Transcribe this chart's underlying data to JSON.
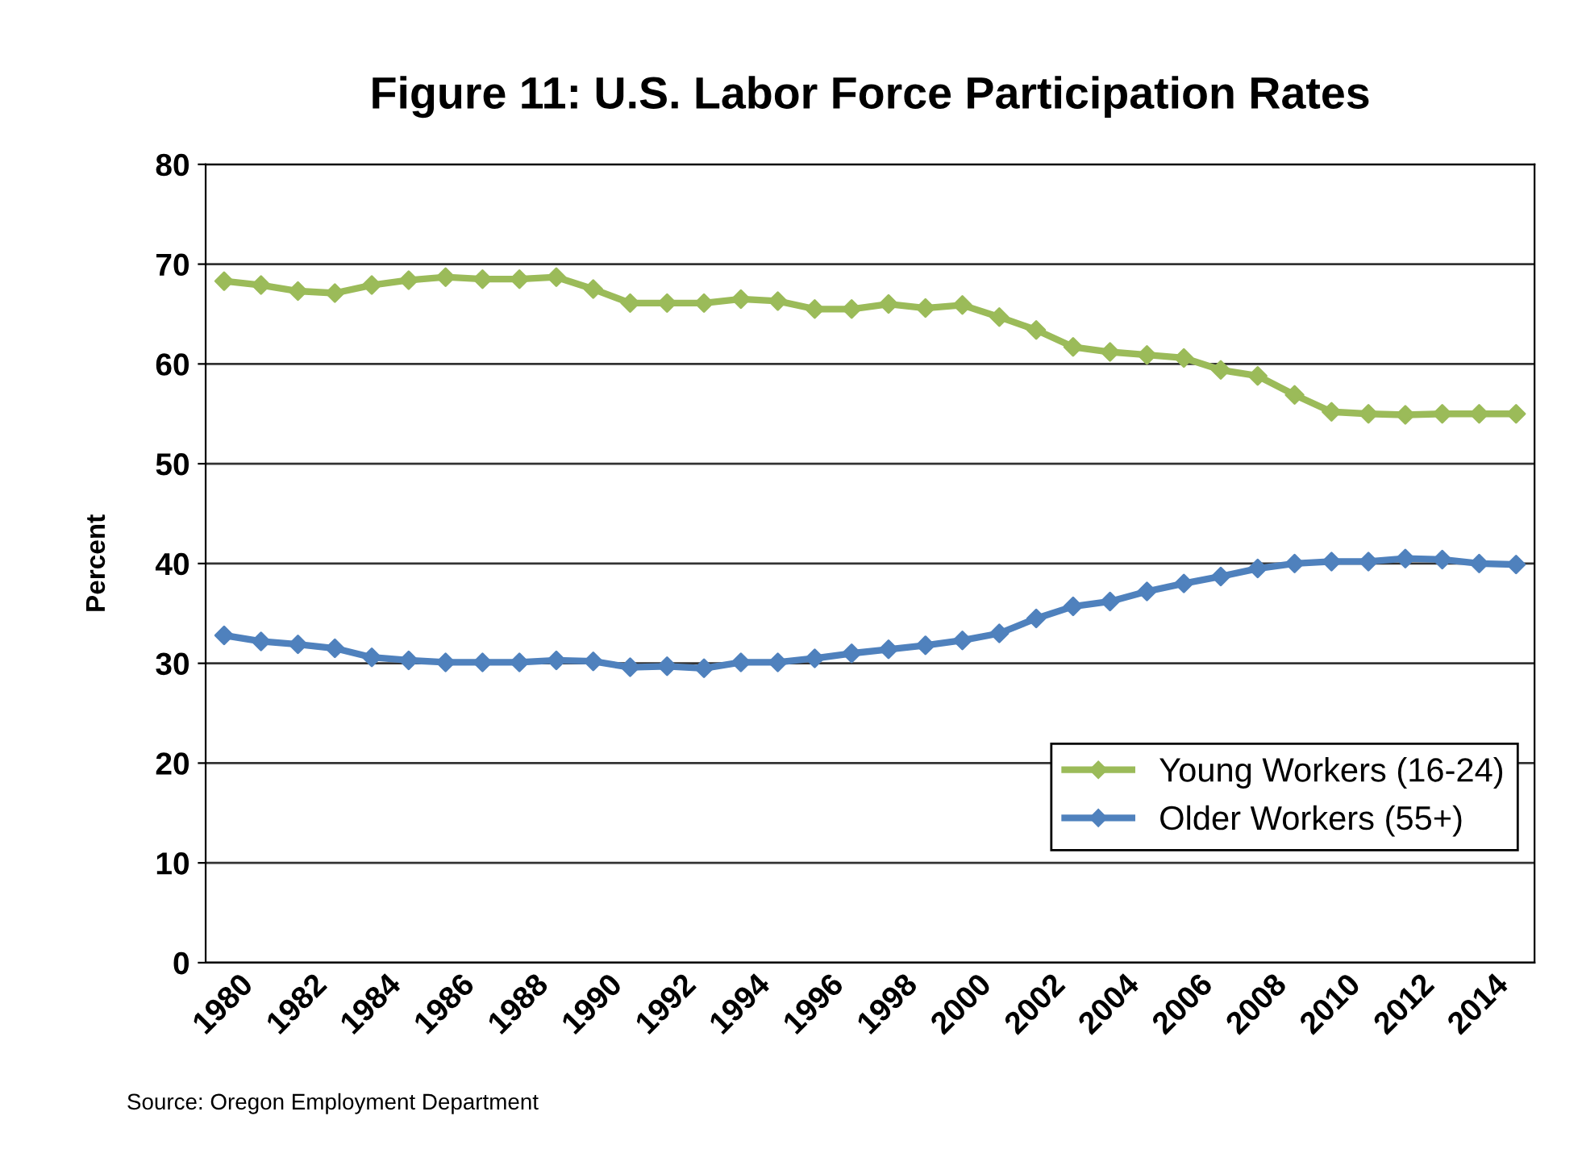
{
  "chart_data": {
    "type": "line",
    "title": "Figure 11: U.S. Labor Force Participation Rates",
    "ylabel": "Percent",
    "categories": [
      "1980",
      null,
      "1982",
      null,
      "1984",
      null,
      "1986",
      null,
      "1988",
      null,
      "1990",
      null,
      "1992",
      null,
      "1994",
      null,
      "1996",
      null,
      "1998",
      null,
      "2000",
      null,
      "2002",
      null,
      "2004",
      null,
      "2006",
      null,
      "2008",
      null,
      "2010",
      null,
      "2012",
      null,
      "2014",
      null
    ],
    "series": [
      {
        "name": "Young Workers (16-24)",
        "color": "#9bbb59",
        "values": [
          68.3,
          67.9,
          67.3,
          67.1,
          67.9,
          68.4,
          68.7,
          68.5,
          68.5,
          68.7,
          67.5,
          66.1,
          66.1,
          66.1,
          66.5,
          66.3,
          65.5,
          65.5,
          66.0,
          65.6,
          65.9,
          64.7,
          63.4,
          61.7,
          61.2,
          60.9,
          60.6,
          59.4,
          58.8,
          56.9,
          55.2,
          55.0,
          54.9,
          55.0,
          55.0,
          55.0
        ]
      },
      {
        "name": "Older Workers (55+)",
        "color": "#4f81bd",
        "values": [
          32.8,
          32.2,
          31.9,
          31.5,
          30.6,
          30.3,
          30.1,
          30.1,
          30.1,
          30.3,
          30.2,
          29.6,
          29.7,
          29.5,
          30.1,
          30.1,
          30.5,
          31.0,
          31.4,
          31.8,
          32.3,
          33.0,
          34.5,
          35.7,
          36.2,
          37.2,
          38.0,
          38.7,
          39.5,
          40.0,
          40.2,
          40.2,
          40.5,
          40.4,
          40.0,
          39.9
        ]
      }
    ],
    "ylim": [
      0,
      80
    ],
    "yticks": [
      0,
      10,
      20,
      30,
      40,
      50,
      60,
      70,
      80
    ],
    "grid": "y",
    "legend": "lower right",
    "marker": "diamond",
    "line_style": "solid",
    "annotations": [
      "Source: Oregon Employment Department"
    ]
  }
}
